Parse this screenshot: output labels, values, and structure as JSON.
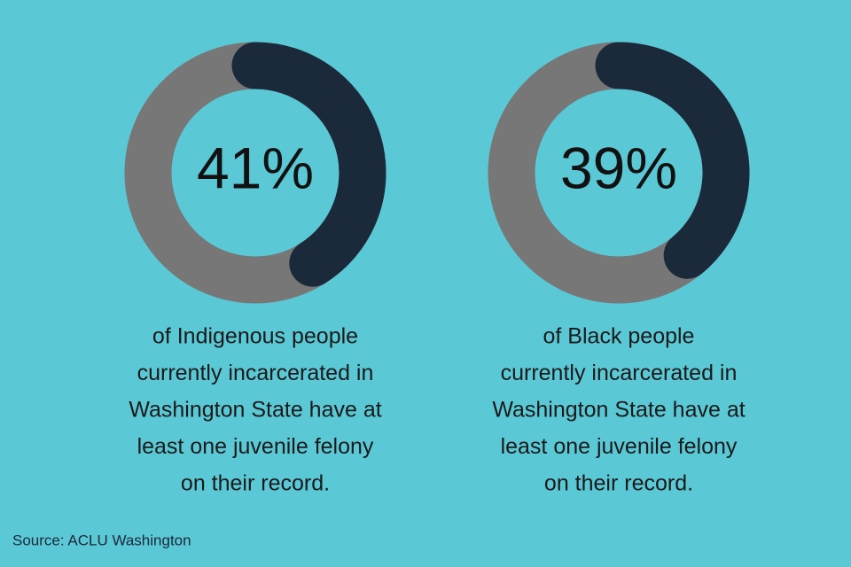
{
  "chart_data": [
    {
      "type": "donut",
      "value": 41,
      "value_label": "41%",
      "color": "#1b2a3a",
      "track_color": "#777777",
      "caption": [
        "of Indigenous people",
        "currently incarcerated in",
        "Washington State have at",
        "least one juvenile felony",
        "on their record."
      ]
    },
    {
      "type": "donut",
      "value": 39,
      "value_label": "39%",
      "color": "#1b2a3a",
      "track_color": "#777777",
      "caption": [
        "of Black people",
        "currently incarcerated in",
        "Washington State have at",
        "least one juvenile felony",
        "on their record."
      ]
    }
  ],
  "source": "Source: ACLU Washington"
}
